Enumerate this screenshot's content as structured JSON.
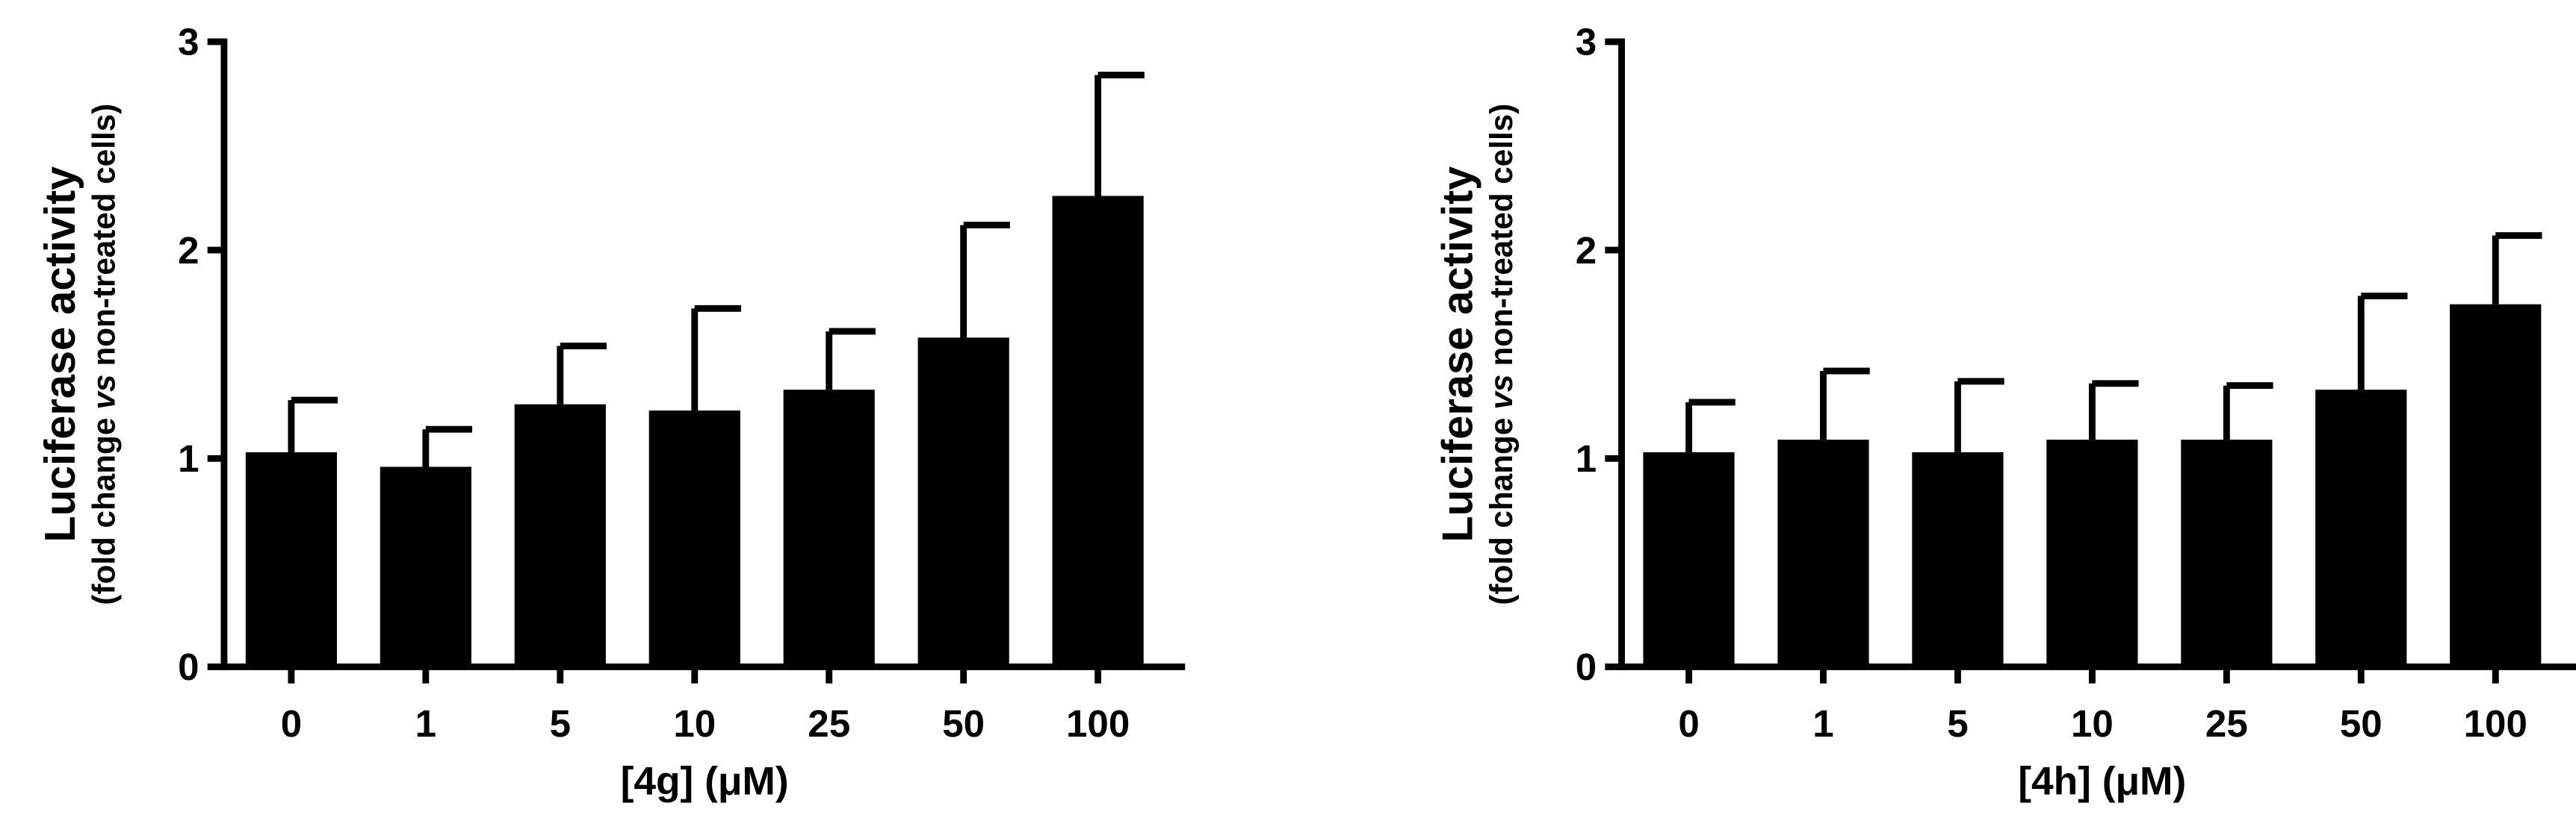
{
  "chart_data": [
    {
      "type": "bar",
      "xlabel": "[4g] (μM)",
      "ylabel": "Luciferase activity",
      "ylabel_sub": [
        "(fold change",
        "vs",
        "non-treated cells)"
      ],
      "categories": [
        "0",
        "1",
        "5",
        "10",
        "25",
        "50",
        "100"
      ],
      "values": [
        1.03,
        0.96,
        1.26,
        1.23,
        1.33,
        1.58,
        2.26
      ],
      "errors": [
        0.25,
        0.18,
        0.28,
        0.49,
        0.28,
        0.54,
        0.58
      ],
      "color": "#000000",
      "ylim": [
        0,
        3
      ],
      "yticks": [
        0,
        1,
        2,
        3
      ]
    },
    {
      "type": "bar",
      "xlabel": "[4h] (μM)",
      "ylabel": "Luciferase activity",
      "ylabel_sub": [
        "(fold change",
        "vs",
        "non-treated cells)"
      ],
      "categories": [
        "0",
        "1",
        "5",
        "10",
        "25",
        "50",
        "100"
      ],
      "values": [
        1.03,
        1.09,
        1.03,
        1.09,
        1.09,
        1.33,
        1.74
      ],
      "errors": [
        0.24,
        0.33,
        0.34,
        0.27,
        0.26,
        0.45,
        0.33
      ],
      "color": "#000000",
      "ylim": [
        0,
        3
      ],
      "yticks": [
        0,
        1,
        2,
        3
      ]
    }
  ]
}
